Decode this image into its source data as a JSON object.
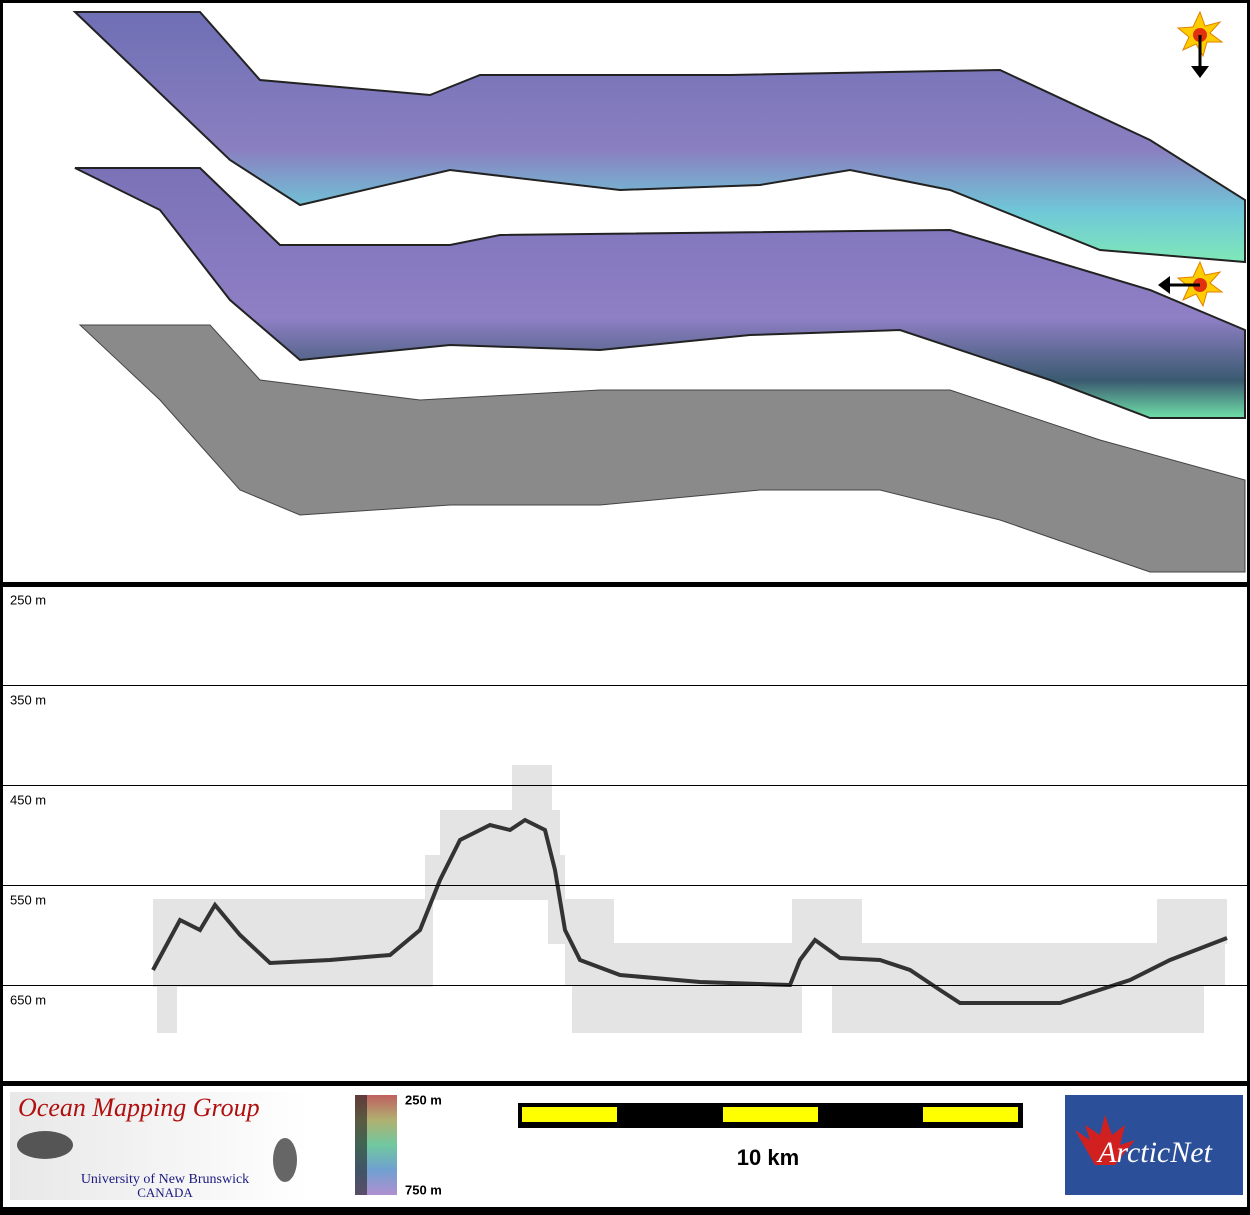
{
  "depth_profile": {
    "labels": [
      "250 m",
      "350 m",
      "450 m",
      "550 m",
      "650 m"
    ]
  },
  "logos": {
    "omg": {
      "title": "Ocean Mapping Group",
      "university": "University of New Brunswick",
      "country": "CANADA"
    },
    "arcticnet": "ArcticNet"
  },
  "color_scale": {
    "top": "250 m",
    "bottom": "750 m"
  },
  "scale_bar": {
    "label": "10 km"
  }
}
